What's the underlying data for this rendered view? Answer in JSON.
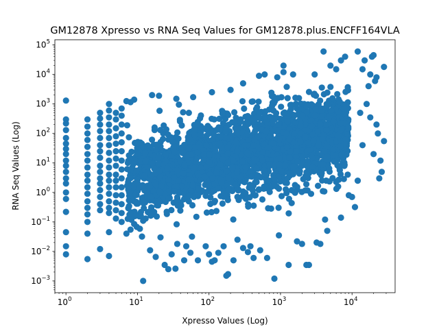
{
  "chart_data": {
    "type": "scatter",
    "title": "GM12878 Xpresso vs RNA Seq Values for GM12878.plus.ENCFF164VLA",
    "xlabel": "Xpresso Values (Log)",
    "ylabel": "RNA Seq Values (Log)",
    "xscale": "log",
    "yscale": "log",
    "xlim": [
      0.7,
      40000
    ],
    "ylim": [
      0.0004,
      150000
    ],
    "x_ticks": [
      {
        "value": 1,
        "base": "10",
        "exp": "0"
      },
      {
        "value": 10,
        "base": "10",
        "exp": "1"
      },
      {
        "value": 100,
        "base": "10",
        "exp": "2"
      },
      {
        "value": 1000,
        "base": "10",
        "exp": "3"
      },
      {
        "value": 10000,
        "base": "10",
        "exp": "4"
      }
    ],
    "y_ticks": [
      {
        "value": 0.001,
        "base": "10",
        "exp": "−3"
      },
      {
        "value": 0.01,
        "base": "10",
        "exp": "−2"
      },
      {
        "value": 0.1,
        "base": "10",
        "exp": "−1"
      },
      {
        "value": 1,
        "base": "10",
        "exp": "0"
      },
      {
        "value": 10,
        "base": "10",
        "exp": "1"
      },
      {
        "value": 100,
        "base": "10",
        "exp": "2"
      },
      {
        "value": 1000,
        "base": "10",
        "exp": "3"
      },
      {
        "value": 10000,
        "base": "10",
        "exp": "4"
      },
      {
        "value": 100000,
        "base": "10",
        "exp": "5"
      }
    ],
    "grid": false,
    "legend": "none",
    "marker_color": "#1f77b4",
    "points": [
      [
        1,
        1300
      ],
      [
        1,
        300
      ],
      [
        1,
        220
      ],
      [
        1,
        130
      ],
      [
        1,
        70
      ],
      [
        1,
        45
      ],
      [
        1,
        30
      ],
      [
        1,
        20
      ],
      [
        1,
        12
      ],
      [
        1,
        8
      ],
      [
        1,
        5
      ],
      [
        1,
        3
      ],
      [
        1,
        2
      ],
      [
        1,
        1
      ],
      [
        1,
        0.6
      ],
      [
        1,
        0.22
      ],
      [
        1,
        0.045
      ],
      [
        1,
        0.015
      ],
      [
        1,
        0.008
      ],
      [
        2,
        300
      ],
      [
        2,
        170
      ],
      [
        2,
        100
      ],
      [
        2,
        60
      ],
      [
        2,
        35
      ],
      [
        2,
        20
      ],
      [
        2,
        12
      ],
      [
        2,
        7
      ],
      [
        2,
        4
      ],
      [
        2,
        2.5
      ],
      [
        2,
        1.5
      ],
      [
        2,
        0.9
      ],
      [
        2,
        0.5
      ],
      [
        2,
        0.3
      ],
      [
        2,
        0.18
      ],
      [
        2,
        0.1
      ],
      [
        2,
        0.04
      ],
      [
        2,
        0.0055
      ],
      [
        3,
        500
      ],
      [
        3,
        320
      ],
      [
        3,
        200
      ],
      [
        3,
        120
      ],
      [
        3,
        70
      ],
      [
        3,
        40
      ],
      [
        3,
        25
      ],
      [
        3,
        15
      ],
      [
        3,
        8
      ],
      [
        3,
        5
      ],
      [
        3,
        3
      ],
      [
        3,
        2
      ],
      [
        3,
        1.2
      ],
      [
        3,
        0.7
      ],
      [
        3,
        0.4
      ],
      [
        3,
        0.25
      ],
      [
        3,
        0.012
      ],
      [
        4,
        1000
      ],
      [
        4,
        600
      ],
      [
        4,
        350
      ],
      [
        4,
        200
      ],
      [
        4,
        120
      ],
      [
        4,
        70
      ],
      [
        4,
        40
      ],
      [
        4,
        22
      ],
      [
        4,
        12
      ],
      [
        4,
        7
      ],
      [
        4,
        4
      ],
      [
        4,
        2.5
      ],
      [
        4,
        1.5
      ],
      [
        4,
        0.9
      ],
      [
        4,
        0.5
      ],
      [
        4,
        0.3
      ],
      [
        4,
        0.2
      ],
      [
        4,
        0.045
      ],
      [
        4,
        0.007
      ],
      [
        5,
        500
      ],
      [
        5,
        300
      ],
      [
        5,
        150
      ],
      [
        5,
        80
      ],
      [
        5,
        45
      ],
      [
        5,
        25
      ],
      [
        5,
        14
      ],
      [
        5,
        8
      ],
      [
        5,
        4
      ],
      [
        5,
        2.5
      ],
      [
        5,
        1.5
      ],
      [
        5,
        0.8
      ],
      [
        5,
        0.45
      ],
      [
        5,
        0.25
      ],
      [
        5,
        0.13
      ],
      [
        6,
        700
      ],
      [
        6,
        400
      ],
      [
        6,
        200
      ],
      [
        6,
        100
      ],
      [
        6,
        50
      ],
      [
        6,
        25
      ],
      [
        6,
        12
      ],
      [
        6,
        6
      ],
      [
        6,
        3
      ],
      [
        6,
        1.5
      ],
      [
        6,
        0.8
      ],
      [
        6,
        0.4
      ],
      [
        6,
        0.2
      ],
      [
        6,
        0.1
      ],
      [
        7,
        1250
      ],
      [
        7,
        0.04
      ],
      [
        8,
        1150
      ],
      [
        8,
        0.055
      ],
      [
        9,
        0.085
      ],
      [
        9,
        1400
      ],
      [
        12,
        0.11
      ],
      [
        12,
        0.001
      ],
      [
        13,
        0.13
      ],
      [
        15,
        0.011
      ],
      [
        16,
        2000
      ],
      [
        18,
        0.0065
      ],
      [
        20,
        1900
      ],
      [
        21,
        0.03
      ],
      [
        24,
        0.0035
      ],
      [
        27,
        0.0025
      ],
      [
        30,
        0.008
      ],
      [
        34,
        0.0026
      ],
      [
        36,
        0.018
      ],
      [
        45,
        0.005
      ],
      [
        48,
        0.015
      ],
      [
        55,
        0.009
      ],
      [
        70,
        0.005
      ],
      [
        90,
        0.015
      ],
      [
        100,
        0.008
      ],
      [
        110,
        0.0045
      ],
      [
        120,
        0.005
      ],
      [
        135,
        0.009
      ],
      [
        160,
        0.015
      ],
      [
        175,
        0.0015
      ],
      [
        185,
        0.0017
      ],
      [
        220,
        0.005
      ],
      [
        250,
        0.025
      ],
      [
        300,
        0.013
      ],
      [
        350,
        0.0095
      ],
      [
        380,
        0.015
      ],
      [
        420,
        0.006
      ],
      [
        520,
        0.011
      ],
      [
        650,
        0.006
      ],
      [
        820,
        0.0012
      ],
      [
        950,
        0.035
      ],
      [
        1300,
        0.0035
      ],
      [
        1700,
        0.022
      ],
      [
        2000,
        0.018
      ],
      [
        2300,
        0.0035
      ],
      [
        2500,
        0.0035
      ],
      [
        3200,
        0.02
      ],
      [
        3600,
        0.018
      ],
      [
        4200,
        0.12
      ],
      [
        4500,
        0.05
      ],
      [
        7000,
        0.14
      ],
      [
        9000,
        0.8
      ],
      [
        10000,
        0.7
      ],
      [
        11000,
        0.32
      ],
      [
        12000,
        2.5
      ],
      [
        14000,
        15000
      ],
      [
        15000,
        30000
      ],
      [
        17000,
        4000
      ],
      [
        18000,
        10000
      ],
      [
        19000,
        40000
      ],
      [
        20000,
        45000
      ],
      [
        21000,
        6000
      ],
      [
        22000,
        8000
      ],
      [
        23000,
        100
      ],
      [
        24000,
        3
      ],
      [
        25000,
        12
      ],
      [
        26000,
        5
      ],
      [
        28000,
        18000
      ],
      [
        28000,
        55
      ],
      [
        13000,
        500
      ],
      [
        16000,
        1000
      ],
      [
        22000,
        200
      ],
      [
        18000,
        350
      ],
      [
        14000,
        40
      ],
      [
        20000,
        20
      ],
      [
        12000,
        60000
      ],
      [
        8000,
        40000
      ],
      [
        7000,
        30000
      ],
      [
        6000,
        15000
      ],
      [
        5000,
        20000
      ],
      [
        4000,
        60000
      ],
      [
        3000,
        10000
      ],
      [
        1500,
        10000
      ],
      [
        1100,
        12000
      ],
      [
        1100,
        20000
      ],
      [
        900,
        8000
      ],
      [
        600,
        10000
      ],
      [
        500,
        9000
      ],
      [
        300,
        5000
      ],
      [
        200,
        3000
      ],
      [
        110,
        2500
      ],
      [
        60,
        1700
      ],
      [
        35,
        1500
      ]
    ]
  }
}
